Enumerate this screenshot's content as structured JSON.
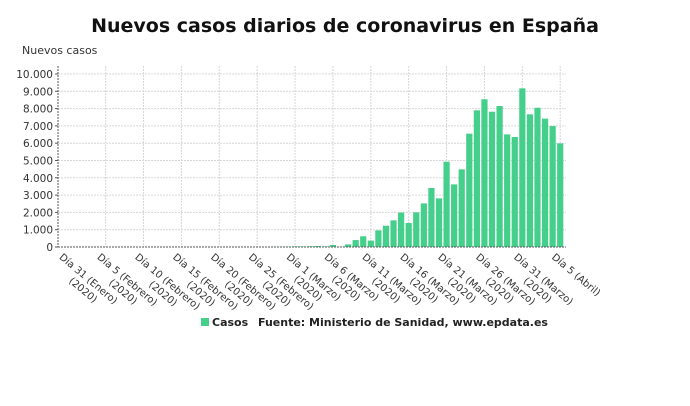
{
  "chart_data": {
    "type": "bar",
    "title": "Nuevos casos diarios de coronavirus en España",
    "ylabel": "Nuevos casos",
    "xlabel": "",
    "ylim": [
      0,
      10000
    ],
    "yticks": [
      "0",
      "1.000",
      "2.000",
      "3.000",
      "4.000",
      "5.000",
      "6.000",
      "7.000",
      "8.000",
      "9.000",
      "10.000"
    ],
    "grid": true,
    "legend_placement": "bottom",
    "color": "#44cf8a",
    "series": [
      {
        "name": "Casos"
      }
    ],
    "source": "Fuente: Ministerio de Sanidad, www.epdata.es",
    "xtick_labels": [
      [
        "Día 31 (Enero)",
        "(2020)"
      ],
      [
        "Día 5 (Febrero)",
        "(2020)"
      ],
      [
        "Día 10 (Febrero)",
        "(2020)"
      ],
      [
        "Día 15 (Febrero)",
        "(2020)"
      ],
      [
        "Día 20 (Febrero)",
        "(2020)"
      ],
      [
        "Día 25 (Febrero)",
        "(2020)"
      ],
      [
        "Día 1 (Marzo)",
        "(2020)"
      ],
      [
        "Día 6 (Marzo)",
        "(2020)"
      ],
      [
        "Día 11 (Marzo)",
        "(2020)"
      ],
      [
        "Día 16 (Marzo)",
        "(2020)"
      ],
      [
        "Día 21 (Marzo)",
        "(2020)"
      ],
      [
        "Día 26 (Marzo)",
        "(2020)"
      ],
      [
        "Día 31 (Marzo)",
        "(2020)"
      ],
      [
        "Día 5 (Abril)",
        ""
      ]
    ],
    "values": [
      0,
      0,
      0,
      0,
      0,
      0,
      0,
      0,
      0,
      0,
      0,
      0,
      0,
      0,
      0,
      0,
      0,
      0,
      0,
      0,
      0,
      0,
      0,
      0,
      0,
      4,
      3,
      8,
      17,
      13,
      39,
      36,
      45,
      57,
      37,
      116,
      20,
      150,
      400,
      620,
      370,
      960,
      1230,
      1540,
      1990,
      1390,
      2000,
      2520,
      3410,
      2810,
      4930,
      3620,
      4490,
      6550,
      7900,
      8540,
      7820,
      8150,
      6510,
      6360,
      9170,
      7670,
      8050,
      7420,
      6990,
      5990
    ]
  }
}
